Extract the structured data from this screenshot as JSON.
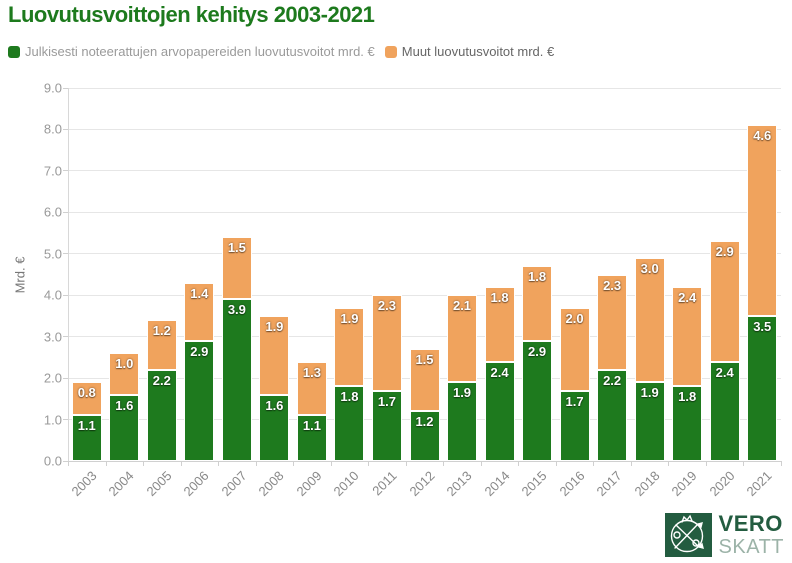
{
  "header": {
    "title": "Luovutusvoittojen kehitys 2003-2021",
    "title_color": "#1d7a1d"
  },
  "legend": {
    "items": [
      {
        "label": "Julkisesti noteerattujen arvopapereiden luovutusvoitot mrd. €",
        "color": "#1e7a1e"
      },
      {
        "label": "Muut luovutusvoitot mrd. €",
        "color": "#f0a35d"
      }
    ]
  },
  "chart_data": {
    "type": "bar",
    "stacked": true,
    "title": "Luovutusvoittojen kehitys 2003-2021",
    "categories": [
      "2003",
      "2004",
      "2005",
      "2006",
      "2007",
      "2008",
      "2009",
      "2010",
      "2011",
      "2012",
      "2013",
      "2014",
      "2015",
      "2016",
      "2017",
      "2018",
      "2019",
      "2020",
      "2021"
    ],
    "series": [
      {
        "name": "Julkisesti noteerattujen arvopapereiden luovutusvoitot mrd. €",
        "color": "#1e7a1e",
        "values": [
          1.1,
          1.6,
          2.2,
          2.9,
          3.9,
          1.6,
          1.1,
          1.8,
          1.7,
          1.2,
          1.9,
          2.4,
          2.9,
          1.7,
          2.2,
          1.9,
          1.8,
          2.4,
          3.5
        ]
      },
      {
        "name": "Muut luovutusvoitot mrd. €",
        "color": "#f0a35d",
        "values": [
          0.8,
          1.0,
          1.2,
          1.4,
          1.5,
          1.9,
          1.3,
          1.9,
          2.3,
          1.5,
          2.1,
          1.8,
          1.8,
          2.0,
          2.3,
          3.0,
          2.4,
          2.9,
          4.6
        ]
      }
    ],
    "xlabel": "",
    "ylabel": "Mrd. €",
    "ylim": [
      0,
      9
    ],
    "ytick_step": 1,
    "yticks": [
      "0.0",
      "1.0",
      "2.0",
      "3.0",
      "4.0",
      "5.0",
      "6.0",
      "7.0",
      "8.0",
      "9.0"
    ],
    "grid": true,
    "legend_position": "top-left",
    "value_labels": "inside-top-white"
  },
  "logo": {
    "line1": "VERO",
    "line2": "SKATT",
    "emblem_color": "#235c40",
    "line1_color": "#235c40",
    "line2_color": "#9cb3a8"
  }
}
